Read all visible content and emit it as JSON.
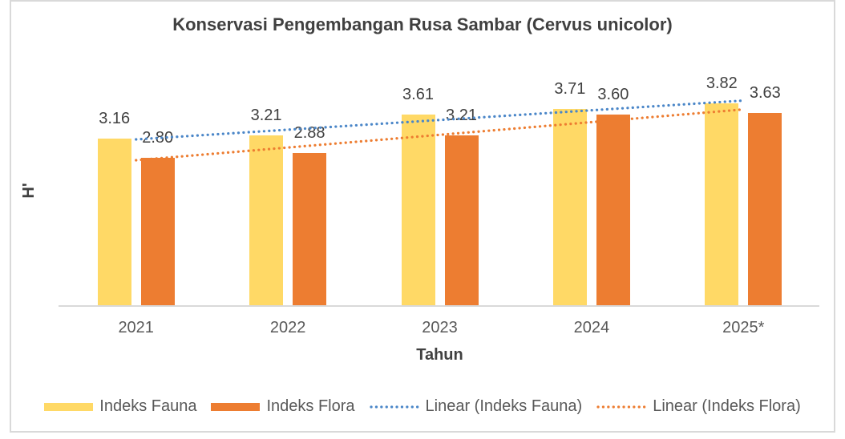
{
  "chart_data": {
    "type": "bar",
    "title": "Konservasi Pengembangan Rusa Sambar (Cervus unicolor)",
    "xlabel": "Tahun",
    "ylabel": "H'",
    "categories": [
      "2021",
      "2022",
      "2023",
      "2024",
      "2025*"
    ],
    "series": [
      {
        "name": "Indeks Fauna",
        "color": "#FFD966",
        "values": [
          3.16,
          3.21,
          3.61,
          3.71,
          3.82
        ]
      },
      {
        "name": "Indeks Flora",
        "color": "#ED7D31",
        "values": [
          2.8,
          2.88,
          3.21,
          3.6,
          3.63
        ]
      }
    ],
    "trendlines": [
      {
        "name": "Linear (Indeks Fauna)",
        "series_index": 0,
        "color": "#4A86C8",
        "style": "dotted"
      },
      {
        "name": "Linear (Indeks Flora)",
        "series_index": 1,
        "color": "#ED7D31",
        "style": "dotted"
      }
    ],
    "ylim": [
      0,
      4.7
    ],
    "grid": false,
    "legend_position": "bottom",
    "data_label_format": "0.00",
    "colors": {
      "title_text": "#404040",
      "data_label_text": "#404040",
      "tick_text": "#595959",
      "legend_text": "#595959",
      "axis_line": "#D9D9D9",
      "frame_border": "#D9D9D9",
      "background": "#FFFFFF"
    }
  }
}
